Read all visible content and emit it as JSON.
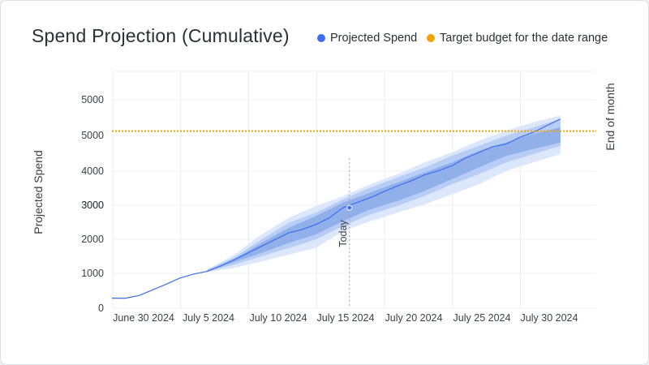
{
  "header": {
    "title": "Spend Projection (Cumulative)"
  },
  "legend": {
    "projected_label": "Projected Spend",
    "target_label": "Target budget for the date range"
  },
  "colors": {
    "projected": "#3d6df2",
    "target": "#f5a300",
    "band_outer": "#dbe6fb",
    "band_mid": "#b4cbf6",
    "band_inner": "#8eaee9"
  },
  "annotations": {
    "today_label": "Today",
    "end_label": "End of month"
  },
  "chart_data": {
    "type": "line",
    "title": "Spend Projection (Cumulative)",
    "xlabel": "",
    "ylabel": "Projected Spend",
    "x_tick_labels": [
      "June 30 2024",
      "July 5 2024",
      "July 10 2024",
      "July 15 2024",
      "July 20 2024",
      "July 25 2024",
      "July 30 2024"
    ],
    "y_tick_labels": [
      "0",
      "1000",
      "2000",
      "3000",
      "3000",
      "4000",
      "5000",
      "5000"
    ],
    "grid": true,
    "legend_position": "top-right",
    "x_range": [
      "2024-06-29",
      "2024-08-01"
    ],
    "series": [
      {
        "name": "Projected Spend",
        "x": [
          "2024-06-29",
          "2024-06-30",
          "2024-07-01",
          "2024-07-02",
          "2024-07-03",
          "2024-07-04",
          "2024-07-05",
          "2024-07-06",
          "2024-07-07",
          "2024-07-08",
          "2024-07-09",
          "2024-07-10",
          "2024-07-11",
          "2024-07-12",
          "2024-07-13",
          "2024-07-14",
          "2024-07-15",
          "2024-07-16",
          "2024-07-17",
          "2024-07-18",
          "2024-07-19",
          "2024-07-20",
          "2024-07-21",
          "2024-07-22",
          "2024-07-23",
          "2024-07-24",
          "2024-07-25",
          "2024-07-26",
          "2024-07-27",
          "2024-07-28",
          "2024-07-29",
          "2024-07-30",
          "2024-07-31",
          "2024-08-01"
        ],
        "values": [
          300,
          300,
          380,
          550,
          720,
          900,
          1020,
          1100,
          1260,
          1450,
          1650,
          1850,
          2050,
          2250,
          2350,
          2500,
          2700,
          3000,
          3150,
          3300,
          3480,
          3650,
          3800,
          3980,
          4100,
          4250,
          4480,
          4650,
          4820,
          4900,
          5100,
          5250,
          5450,
          5650
        ]
      }
    ],
    "forecast_bands": {
      "x": [
        "2024-07-06",
        "2024-07-08",
        "2024-07-10",
        "2024-07-12",
        "2024-07-14",
        "2024-07-16",
        "2024-07-18",
        "2024-07-20",
        "2024-07-22",
        "2024-07-24",
        "2024-07-26",
        "2024-07-28",
        "2024-07-30",
        "2024-08-01"
      ],
      "p10_90": [
        [
          1080,
          1150
        ],
        [
          1200,
          1600
        ],
        [
          1400,
          2200
        ],
        [
          1600,
          2700
        ],
        [
          1800,
          3050
        ],
        [
          2300,
          3350
        ],
        [
          2600,
          3700
        ],
        [
          2850,
          4000
        ],
        [
          3100,
          4350
        ],
        [
          3400,
          4650
        ],
        [
          3700,
          5000
        ],
        [
          4100,
          5300
        ],
        [
          4350,
          5550
        ],
        [
          4600,
          5750
        ]
      ],
      "p25_75": [
        [
          1090,
          1140
        ],
        [
          1300,
          1520
        ],
        [
          1550,
          2050
        ],
        [
          1800,
          2550
        ],
        [
          2050,
          2850
        ],
        [
          2450,
          3250
        ],
        [
          2800,
          3600
        ],
        [
          3050,
          3900
        ],
        [
          3350,
          4200
        ],
        [
          3700,
          4550
        ],
        [
          4000,
          4850
        ],
        [
          4350,
          5150
        ],
        [
          4600,
          5400
        ],
        [
          4850,
          5650
        ]
      ],
      "p40_60": [
        [
          1095,
          1130
        ],
        [
          1380,
          1460
        ],
        [
          1650,
          1950
        ],
        [
          1950,
          2400
        ],
        [
          2200,
          2750
        ],
        [
          2600,
          3150
        ],
        [
          2950,
          3450
        ],
        [
          3200,
          3750
        ],
        [
          3500,
          4050
        ],
        [
          3850,
          4350
        ],
        [
          4200,
          4700
        ],
        [
          4550,
          4950
        ],
        [
          4750,
          5200
        ],
        [
          4950,
          5400
        ]
      ]
    },
    "target_budget": 5300,
    "today": "2024-07-16",
    "today_value": 3000
  }
}
